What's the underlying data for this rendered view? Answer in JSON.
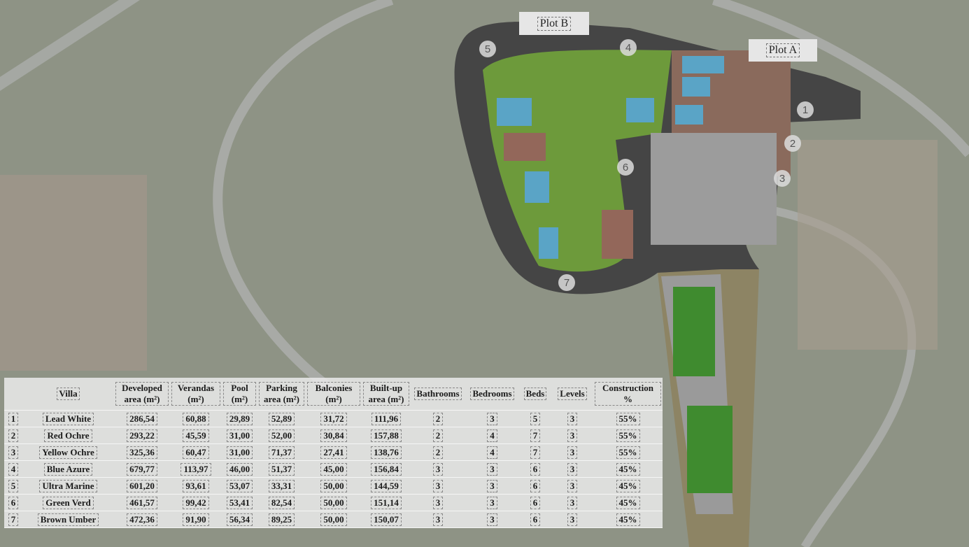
{
  "plots": [
    {
      "label": "Plot B"
    },
    {
      "label": "Plot A"
    }
  ],
  "markers": [
    "1",
    "2",
    "3",
    "4",
    "5",
    "6",
    "7"
  ],
  "table": {
    "headers": [
      "",
      "Villa",
      "Developed area (m²)",
      "Verandas (m²)",
      "Pool (m²)",
      "Parking area (m²)",
      "Balconies (m²)",
      "Built-up area (m²)",
      "Bathrooms",
      "Bedrooms",
      "Beds",
      "Levels",
      "Construction %"
    ],
    "rows": [
      [
        "1",
        "Lead White",
        "286,54",
        "60,88",
        "29,89",
        "52,89",
        "31,72",
        "111,96",
        "2",
        "3",
        "5",
        "3",
        "55%"
      ],
      [
        "2",
        "Red Ochre",
        "293,22",
        "45,59",
        "31,00",
        "52,00",
        "30,84",
        "157,88",
        "2",
        "4",
        "7",
        "3",
        "55%"
      ],
      [
        "3",
        "Yellow Ochre",
        "325,36",
        "60,47",
        "31,00",
        "71,37",
        "27,41",
        "138,76",
        "2",
        "4",
        "7",
        "3",
        "55%"
      ],
      [
        "4",
        "Blue Azure",
        "679,77",
        "113,97",
        "46,00",
        "51,37",
        "45,00",
        "156,84",
        "3",
        "3",
        "6",
        "3",
        "45%"
      ],
      [
        "5",
        "Ultra Marine",
        "601,20",
        "93,61",
        "53,07",
        "33,31",
        "50,00",
        "144,59",
        "3",
        "3",
        "6",
        "3",
        "45%"
      ],
      [
        "6",
        "Green Verd",
        "461,57",
        "99,42",
        "53,41",
        "82,54",
        "50,00",
        "151,14",
        "3",
        "3",
        "6",
        "3",
        "45%"
      ],
      [
        "7",
        "Brown Umber",
        "472,36",
        "91,90",
        "56,34",
        "89,25",
        "50,00",
        "150,07",
        "3",
        "3",
        "6",
        "3",
        "45%"
      ]
    ]
  }
}
